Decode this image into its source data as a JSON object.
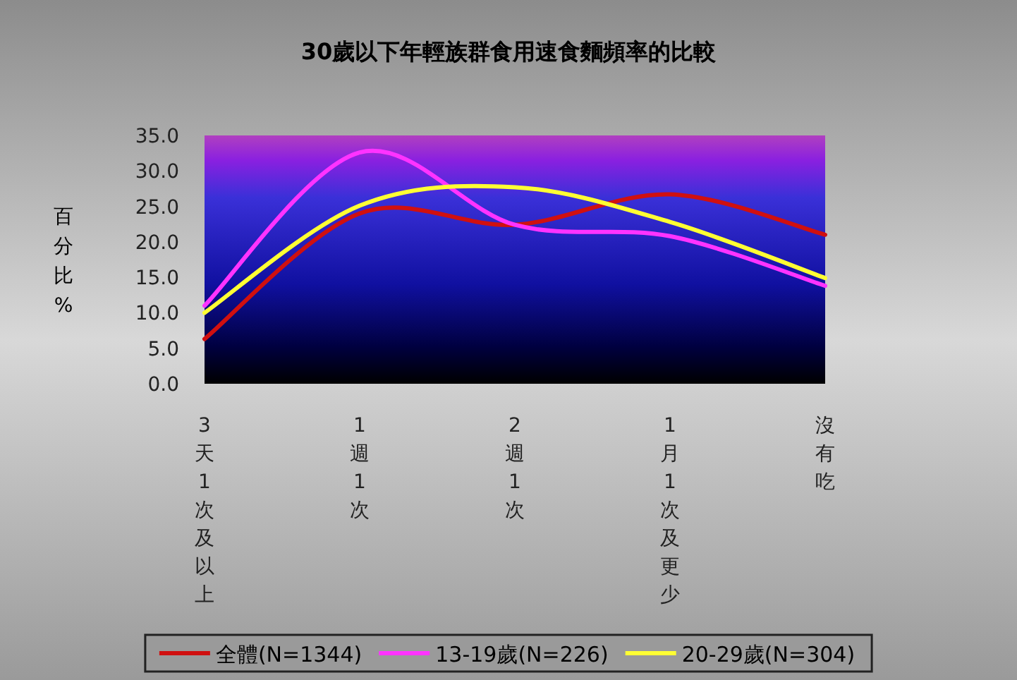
{
  "chart_data": {
    "type": "line",
    "title": "30歲以下年輕族群食用速食麵頻率的比較",
    "ylabel": "百分比%",
    "categories": [
      "3天1次及以上",
      "1週1次",
      "2週1次",
      "1月1次及更少",
      "沒有吃"
    ],
    "series": [
      {
        "name": "全體(N=1344)",
        "color": "#d01010",
        "values": [
          6.3,
          24.0,
          22.4,
          26.7,
          21.0
        ]
      },
      {
        "name": "13-19歲(N=226)",
        "color": "#ff33ff",
        "values": [
          11.0,
          32.6,
          22.4,
          20.8,
          13.8
        ]
      },
      {
        "name": "20-29歲(N=304)",
        "color": "#ffff33",
        "values": [
          10.0,
          25.1,
          27.7,
          22.8,
          14.9
        ]
      }
    ],
    "ylim": [
      0,
      35
    ],
    "yticks": [
      {
        "value": 0,
        "label": "0.0"
      },
      {
        "value": 5,
        "label": "5.0"
      },
      {
        "value": 10,
        "label": "10.0"
      },
      {
        "value": 15,
        "label": "15.0"
      },
      {
        "value": 20,
        "label": "20.0"
      },
      {
        "value": 25,
        "label": "25.0"
      },
      {
        "value": 30,
        "label": "30.0"
      },
      {
        "value": 35,
        "label": "35.0"
      }
    ],
    "grid": false,
    "legend": "bottom",
    "marker": "none",
    "line_style": "solid"
  }
}
